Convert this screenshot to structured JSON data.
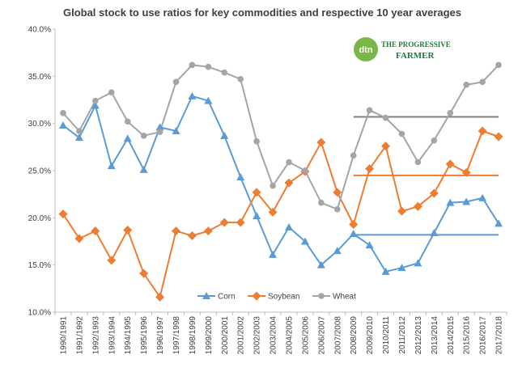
{
  "chart_data": {
    "type": "line",
    "title": "Global stock to use ratios for key commodities and respective 10 year averages",
    "xlabel": "",
    "ylabel": "",
    "ylim": [
      10,
      40
    ],
    "yticks": [
      "10.0%",
      "15.0%",
      "20.0%",
      "25.0%",
      "30.0%",
      "35.0%",
      "40.0%"
    ],
    "ytick_values": [
      10,
      15,
      20,
      25,
      30,
      35,
      40
    ],
    "grid": false,
    "legend_position": "bottom-center",
    "categories": [
      "1990/1991",
      "1991/1992",
      "1992/1993",
      "1993/1994",
      "1994/1995",
      "1995/1996",
      "1996/1997",
      "1997/1998",
      "1998/1999",
      "1999/2000",
      "2000/2001",
      "2001/2002",
      "2002/2003",
      "2003/2004",
      "2004/2005",
      "2005/2006",
      "2006/2007",
      "2007/2008",
      "2008/2009",
      "2009/2010",
      "2010/2011",
      "2011/2012",
      "2012/2013",
      "2013/2014",
      "2014/2015",
      "2015/2016",
      "2016/2017",
      "2017/2018"
    ],
    "series": [
      {
        "name": "Corn",
        "color": "#5B9BD5",
        "marker": "triangle",
        "values": [
          29.8,
          28.5,
          31.9,
          25.5,
          28.4,
          25.1,
          29.6,
          29.2,
          32.9,
          32.4,
          28.7,
          24.3,
          20.2,
          16.1,
          19.0,
          17.5,
          15.0,
          16.5,
          18.3,
          17.1,
          14.3,
          14.7,
          15.2,
          18.4,
          21.6,
          21.7,
          22.1,
          19.4
        ]
      },
      {
        "name": "Soybean",
        "color": "#ED7D31",
        "marker": "diamond",
        "values": [
          20.4,
          17.8,
          18.6,
          15.5,
          18.7,
          14.1,
          11.6,
          18.6,
          18.1,
          18.6,
          19.5,
          19.5,
          22.7,
          20.6,
          23.7,
          24.9,
          28.0,
          22.7,
          19.3,
          25.2,
          27.6,
          20.7,
          21.2,
          22.6,
          25.7,
          24.8,
          29.2,
          28.6
        ]
      },
      {
        "name": "Wheat",
        "color": "#A5A5A5",
        "marker": "circle",
        "values": [
          31.1,
          29.2,
          32.4,
          33.3,
          30.2,
          28.7,
          29.1,
          34.4,
          36.2,
          36.0,
          35.4,
          34.7,
          28.1,
          23.4,
          25.9,
          25.0,
          21.6,
          20.9,
          26.6,
          31.4,
          30.6,
          28.9,
          25.9,
          28.2,
          31.1,
          34.1,
          34.4,
          36.2
        ]
      }
    ],
    "averages": [
      {
        "series": "Corn",
        "color": "#5B9BD5",
        "value": 18.2,
        "from": "2008/2009",
        "to": "2017/2018"
      },
      {
        "series": "Soybean",
        "color": "#ED7D31",
        "value": 24.5,
        "from": "2008/2009",
        "to": "2017/2018"
      },
      {
        "series": "Wheat",
        "color": "#808080",
        "value": 30.7,
        "from": "2008/2009",
        "to": "2017/2018"
      }
    ]
  },
  "logo": {
    "mark": "dtn",
    "line1": "THE PROGRESSIVE",
    "line2": "FARMER"
  }
}
